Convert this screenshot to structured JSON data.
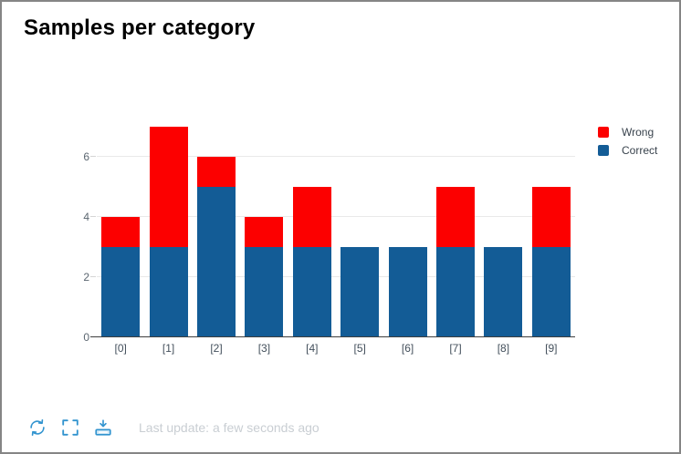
{
  "title": "Samples per category",
  "chart_data": {
    "type": "bar",
    "stacked": true,
    "title": "Samples per category",
    "categories": [
      "[0]",
      "[1]",
      "[2]",
      "[3]",
      "[4]",
      "[5]",
      "[6]",
      "[7]",
      "[8]",
      "[9]"
    ],
    "series": [
      {
        "name": "Wrong",
        "color": "#fc0000",
        "values": [
          1,
          4,
          1,
          1,
          2,
          0,
          0,
          2,
          0,
          2
        ]
      },
      {
        "name": "Correct",
        "color": "#135c96",
        "values": [
          3,
          3,
          5,
          3,
          3,
          3,
          3,
          3,
          3,
          3
        ]
      }
    ],
    "stack_order": [
      "Correct",
      "Wrong"
    ],
    "totals": [
      4,
      7,
      6,
      4,
      5,
      3,
      3,
      5,
      3,
      5
    ],
    "xlabel": "",
    "ylabel": "",
    "ylim": [
      0,
      7
    ],
    "yticks": [
      0,
      2,
      4,
      6
    ],
    "grid": true,
    "legend_position": "top-right"
  },
  "footer": {
    "last_update": "Last update: a few seconds ago",
    "icons": [
      "refresh-icon",
      "fullscreen-icon",
      "download-icon"
    ]
  }
}
